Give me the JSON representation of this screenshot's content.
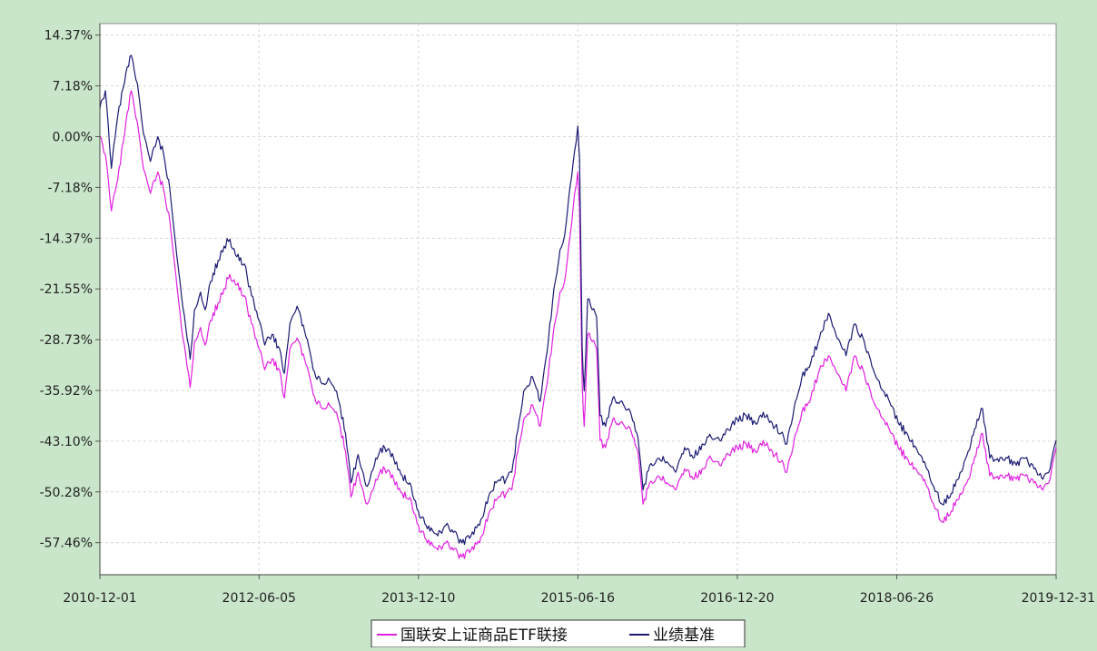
{
  "chart_data": {
    "type": "line",
    "title": "",
    "xlabel": "",
    "ylabel": "",
    "x_ticks": [
      "2010-12-01",
      "2012-06-05",
      "2013-12-10",
      "2015-06-16",
      "2016-12-20",
      "2018-06-26",
      "2019-12-31"
    ],
    "y_ticks": [
      "14.37%",
      "7.18%",
      "0.00%",
      "-7.18%",
      "-14.37%",
      "-21.55%",
      "-28.73%",
      "-35.92%",
      "-43.10%",
      "-50.28%",
      "-57.46%"
    ],
    "ylim": [
      -62.0,
      16.0
    ],
    "xlim": [
      "2010-12-01",
      "2019-12-31"
    ],
    "grid": true,
    "legend_position": "bottom-center",
    "series": [
      {
        "name": "国联安上证商品ETF联接",
        "color": "#e020e0",
        "points": [
          [
            "2010-12-01",
            0.0
          ],
          [
            "2010-12-20",
            -2.5
          ],
          [
            "2011-01-10",
            -10.5
          ],
          [
            "2011-02-01",
            -6.0
          ],
          [
            "2011-03-01",
            2.0
          ],
          [
            "2011-03-20",
            6.5
          ],
          [
            "2011-04-10",
            2.0
          ],
          [
            "2011-05-01",
            -4.5
          ],
          [
            "2011-05-25",
            -8.0
          ],
          [
            "2011-06-20",
            -5.0
          ],
          [
            "2011-07-10",
            -7.5
          ],
          [
            "2011-08-01",
            -12.0
          ],
          [
            "2011-08-20",
            -19.0
          ],
          [
            "2011-09-10",
            -27.0
          ],
          [
            "2011-09-25",
            -31.0
          ],
          [
            "2011-10-10",
            -35.5
          ],
          [
            "2011-10-25",
            -29.0
          ],
          [
            "2011-11-15",
            -27.0
          ],
          [
            "2011-12-01",
            -29.5
          ],
          [
            "2011-12-20",
            -26.0
          ],
          [
            "2012-01-15",
            -23.5
          ],
          [
            "2012-02-05",
            -21.5
          ],
          [
            "2012-02-25",
            -19.5
          ],
          [
            "2012-03-20",
            -21.0
          ],
          [
            "2012-04-15",
            -22.5
          ],
          [
            "2012-05-10",
            -26.5
          ],
          [
            "2012-06-05",
            -30.0
          ],
          [
            "2012-06-25",
            -33.0
          ],
          [
            "2012-07-20",
            -31.5
          ],
          [
            "2012-08-15",
            -33.0
          ],
          [
            "2012-09-01",
            -37.0
          ],
          [
            "2012-09-20",
            -30.0
          ],
          [
            "2012-10-15",
            -28.5
          ],
          [
            "2012-11-10",
            -31.5
          ],
          [
            "2012-12-10",
            -36.5
          ],
          [
            "2013-01-10",
            -38.5
          ],
          [
            "2013-02-05",
            -38.0
          ],
          [
            "2013-03-01",
            -39.0
          ],
          [
            "2013-04-01",
            -44.5
          ],
          [
            "2013-04-20",
            -51.0
          ],
          [
            "2013-05-15",
            -47.5
          ],
          [
            "2013-06-15",
            -52.0
          ],
          [
            "2013-07-15",
            -48.5
          ],
          [
            "2013-08-15",
            -47.0
          ],
          [
            "2013-09-15",
            -48.5
          ],
          [
            "2013-10-15",
            -50.5
          ],
          [
            "2013-11-15",
            -51.5
          ],
          [
            "2013-12-10",
            -55.0
          ],
          [
            "2014-01-10",
            -57.5
          ],
          [
            "2014-02-15",
            -58.5
          ],
          [
            "2014-03-15",
            -57.5
          ],
          [
            "2014-04-10",
            -58.5
          ],
          [
            "2014-05-10",
            -59.5
          ],
          [
            "2014-06-10",
            -58.5
          ],
          [
            "2014-07-10",
            -57.5
          ],
          [
            "2014-08-10",
            -53.5
          ],
          [
            "2014-09-05",
            -51.5
          ],
          [
            "2014-10-10",
            -50.5
          ],
          [
            "2014-10-30",
            -50.0
          ],
          [
            "2014-11-20",
            -44.5
          ],
          [
            "2014-12-10",
            -40.0
          ],
          [
            "2015-01-10",
            -38.0
          ],
          [
            "2015-02-05",
            -41.0
          ],
          [
            "2015-03-01",
            -35.0
          ],
          [
            "2015-03-25",
            -27.0
          ],
          [
            "2015-04-15",
            -22.0
          ],
          [
            "2015-05-01",
            -20.5
          ],
          [
            "2015-05-20",
            -14.0
          ],
          [
            "2015-06-05",
            -8.0
          ],
          [
            "2015-06-16",
            -5.0
          ],
          [
            "2015-06-22",
            -10.0
          ],
          [
            "2015-07-01",
            -35.0
          ],
          [
            "2015-07-08",
            -41.0
          ],
          [
            "2015-07-20",
            -28.0
          ],
          [
            "2015-08-05",
            -29.0
          ],
          [
            "2015-08-20",
            -30.0
          ],
          [
            "2015-09-01",
            -43.0
          ],
          [
            "2015-09-20",
            -44.0
          ],
          [
            "2015-10-15",
            -40.0
          ],
          [
            "2015-11-10",
            -40.5
          ],
          [
            "2015-12-10",
            -41.0
          ],
          [
            "2016-01-10",
            -44.5
          ],
          [
            "2016-01-28",
            -52.0
          ],
          [
            "2016-02-20",
            -49.0
          ],
          [
            "2016-03-20",
            -48.0
          ],
          [
            "2016-04-20",
            -49.0
          ],
          [
            "2016-05-20",
            -50.0
          ],
          [
            "2016-06-20",
            -47.0
          ],
          [
            "2016-07-20",
            -48.5
          ],
          [
            "2016-08-20",
            -47.0
          ],
          [
            "2016-09-20",
            -45.5
          ],
          [
            "2016-10-20",
            -46.5
          ],
          [
            "2016-11-20",
            -45.0
          ],
          [
            "2016-12-20",
            -44.0
          ],
          [
            "2017-01-20",
            -43.5
          ],
          [
            "2017-02-20",
            -44.5
          ],
          [
            "2017-03-20",
            -43.0
          ],
          [
            "2017-04-20",
            -44.5
          ],
          [
            "2017-05-20",
            -46.0
          ],
          [
            "2017-06-10",
            -47.5
          ],
          [
            "2017-07-01",
            -44.0
          ],
          [
            "2017-08-01",
            -39.0
          ],
          [
            "2017-09-01",
            -37.0
          ],
          [
            "2017-10-01",
            -33.0
          ],
          [
            "2017-11-01",
            -31.0
          ],
          [
            "2017-12-01",
            -33.5
          ],
          [
            "2018-01-01",
            -36.0
          ],
          [
            "2018-02-01",
            -31.0
          ],
          [
            "2018-03-01",
            -33.0
          ],
          [
            "2018-04-01",
            -37.0
          ],
          [
            "2018-05-01",
            -39.5
          ],
          [
            "2018-06-01",
            -41.5
          ],
          [
            "2018-07-01",
            -44.0
          ],
          [
            "2018-08-01",
            -45.5
          ],
          [
            "2018-09-01",
            -47.0
          ],
          [
            "2018-10-01",
            -48.5
          ],
          [
            "2018-11-01",
            -52.0
          ],
          [
            "2018-12-01",
            -54.5
          ],
          [
            "2019-01-01",
            -53.0
          ],
          [
            "2019-02-01",
            -50.5
          ],
          [
            "2019-03-01",
            -48.5
          ],
          [
            "2019-04-01",
            -44.0
          ],
          [
            "2019-04-20",
            -42.0
          ],
          [
            "2019-05-15",
            -48.0
          ],
          [
            "2019-06-15",
            -48.5
          ],
          [
            "2019-07-15",
            -48.0
          ],
          [
            "2019-08-15",
            -48.5
          ],
          [
            "2019-09-15",
            -48.0
          ],
          [
            "2019-10-15",
            -49.0
          ],
          [
            "2019-11-15",
            -50.0
          ],
          [
            "2019-12-10",
            -48.5
          ],
          [
            "2019-12-31",
            -44.0
          ]
        ]
      },
      {
        "name": "业绩基准",
        "color": "#1a1a72",
        "points": [
          [
            "2010-12-01",
            4.0
          ],
          [
            "2010-12-20",
            6.5
          ],
          [
            "2011-01-10",
            -4.5
          ],
          [
            "2011-02-01",
            3.0
          ],
          [
            "2011-03-01",
            9.0
          ],
          [
            "2011-03-20",
            11.5
          ],
          [
            "2011-04-10",
            7.5
          ],
          [
            "2011-05-01",
            0.5
          ],
          [
            "2011-05-25",
            -3.5
          ],
          [
            "2011-06-20",
            0.0
          ],
          [
            "2011-07-10",
            -2.5
          ],
          [
            "2011-08-01",
            -7.5
          ],
          [
            "2011-08-20",
            -15.0
          ],
          [
            "2011-09-10",
            -22.5
          ],
          [
            "2011-09-25",
            -27.0
          ],
          [
            "2011-10-10",
            -31.5
          ],
          [
            "2011-10-25",
            -24.5
          ],
          [
            "2011-11-15",
            -22.0
          ],
          [
            "2011-12-01",
            -24.5
          ],
          [
            "2011-12-20",
            -20.5
          ],
          [
            "2012-01-15",
            -17.5
          ],
          [
            "2012-02-05",
            -15.5
          ],
          [
            "2012-02-25",
            -14.5
          ],
          [
            "2012-03-20",
            -17.0
          ],
          [
            "2012-04-15",
            -18.0
          ],
          [
            "2012-05-10",
            -22.5
          ],
          [
            "2012-06-05",
            -26.0
          ],
          [
            "2012-06-25",
            -29.5
          ],
          [
            "2012-07-20",
            -28.0
          ],
          [
            "2012-08-15",
            -30.0
          ],
          [
            "2012-09-01",
            -33.5
          ],
          [
            "2012-09-20",
            -26.5
          ],
          [
            "2012-10-15",
            -24.0
          ],
          [
            "2012-11-10",
            -27.5
          ],
          [
            "2012-12-10",
            -33.0
          ],
          [
            "2013-01-10",
            -35.0
          ],
          [
            "2013-02-05",
            -34.5
          ],
          [
            "2013-03-01",
            -36.0
          ],
          [
            "2013-04-01",
            -42.0
          ],
          [
            "2013-04-20",
            -49.0
          ],
          [
            "2013-05-15",
            -45.0
          ],
          [
            "2013-06-15",
            -49.5
          ],
          [
            "2013-07-15",
            -45.5
          ],
          [
            "2013-08-15",
            -44.0
          ],
          [
            "2013-09-15",
            -45.5
          ],
          [
            "2013-10-15",
            -48.0
          ],
          [
            "2013-11-15",
            -49.5
          ],
          [
            "2013-12-10",
            -53.0
          ],
          [
            "2014-01-10",
            -55.5
          ],
          [
            "2014-02-15",
            -56.5
          ],
          [
            "2014-03-15",
            -55.0
          ],
          [
            "2014-04-10",
            -56.0
          ],
          [
            "2014-05-10",
            -57.5
          ],
          [
            "2014-06-10",
            -56.5
          ],
          [
            "2014-07-10",
            -55.0
          ],
          [
            "2014-08-10",
            -51.0
          ],
          [
            "2014-09-05",
            -49.0
          ],
          [
            "2014-10-10",
            -48.5
          ],
          [
            "2014-10-30",
            -47.5
          ],
          [
            "2014-11-20",
            -41.5
          ],
          [
            "2014-12-10",
            -36.0
          ],
          [
            "2015-01-10",
            -34.0
          ],
          [
            "2015-02-05",
            -37.5
          ],
          [
            "2015-03-01",
            -30.5
          ],
          [
            "2015-03-25",
            -21.5
          ],
          [
            "2015-04-15",
            -16.0
          ],
          [
            "2015-05-01",
            -14.0
          ],
          [
            "2015-05-20",
            -7.0
          ],
          [
            "2015-06-05",
            -2.0
          ],
          [
            "2015-06-16",
            1.5
          ],
          [
            "2015-06-22",
            -3.0
          ],
          [
            "2015-07-01",
            -30.0
          ],
          [
            "2015-07-08",
            -36.0
          ],
          [
            "2015-07-20",
            -23.0
          ],
          [
            "2015-08-05",
            -24.5
          ],
          [
            "2015-08-20",
            -25.5
          ],
          [
            "2015-09-01",
            -39.5
          ],
          [
            "2015-09-20",
            -41.0
          ],
          [
            "2015-10-15",
            -37.0
          ],
          [
            "2015-11-10",
            -37.5
          ],
          [
            "2015-12-10",
            -38.5
          ],
          [
            "2016-01-10",
            -42.5
          ],
          [
            "2016-01-28",
            -50.0
          ],
          [
            "2016-02-20",
            -46.5
          ],
          [
            "2016-03-20",
            -45.5
          ],
          [
            "2016-04-20",
            -46.0
          ],
          [
            "2016-05-20",
            -47.5
          ],
          [
            "2016-06-20",
            -44.0
          ],
          [
            "2016-07-20",
            -45.5
          ],
          [
            "2016-08-20",
            -43.5
          ],
          [
            "2016-09-20",
            -42.5
          ],
          [
            "2016-10-20",
            -43.0
          ],
          [
            "2016-11-20",
            -41.5
          ],
          [
            "2016-12-20",
            -40.0
          ],
          [
            "2017-01-20",
            -39.5
          ],
          [
            "2017-02-20",
            -40.5
          ],
          [
            "2017-03-20",
            -39.0
          ],
          [
            "2017-04-20",
            -40.5
          ],
          [
            "2017-05-20",
            -42.0
          ],
          [
            "2017-06-10",
            -43.5
          ],
          [
            "2017-07-01",
            -39.5
          ],
          [
            "2017-08-01",
            -34.0
          ],
          [
            "2017-09-01",
            -32.0
          ],
          [
            "2017-10-01",
            -28.5
          ],
          [
            "2017-11-01",
            -25.0
          ],
          [
            "2017-12-01",
            -28.5
          ],
          [
            "2018-01-01",
            -31.0
          ],
          [
            "2018-02-01",
            -26.5
          ],
          [
            "2018-03-01",
            -28.5
          ],
          [
            "2018-04-01",
            -32.5
          ],
          [
            "2018-05-01",
            -35.5
          ],
          [
            "2018-06-01",
            -37.5
          ],
          [
            "2018-07-01",
            -40.5
          ],
          [
            "2018-08-01",
            -42.0
          ],
          [
            "2018-09-01",
            -44.0
          ],
          [
            "2018-10-01",
            -46.0
          ],
          [
            "2018-11-01",
            -49.5
          ],
          [
            "2018-12-01",
            -52.0
          ],
          [
            "2019-01-01",
            -50.5
          ],
          [
            "2019-02-01",
            -47.5
          ],
          [
            "2019-03-01",
            -44.5
          ],
          [
            "2019-04-01",
            -40.0
          ],
          [
            "2019-04-20",
            -38.5
          ],
          [
            "2019-05-15",
            -45.5
          ],
          [
            "2019-06-15",
            -46.0
          ],
          [
            "2019-07-15",
            -45.5
          ],
          [
            "2019-08-15",
            -46.5
          ],
          [
            "2019-09-15",
            -45.5
          ],
          [
            "2019-10-15",
            -47.0
          ],
          [
            "2019-11-15",
            -48.5
          ],
          [
            "2019-12-10",
            -47.0
          ],
          [
            "2019-12-31",
            -43.0
          ]
        ]
      }
    ]
  }
}
